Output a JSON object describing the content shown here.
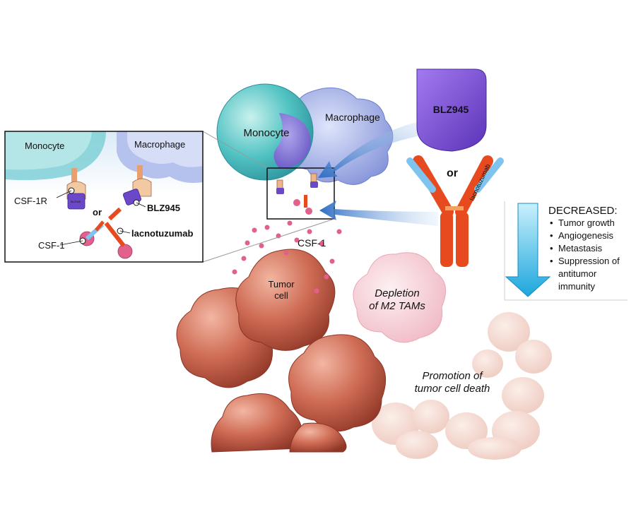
{
  "labels": {
    "monocyte": "Monocyte",
    "macrophage": "Macrophage",
    "csf1": "CSF-1",
    "tumor_cell_line1": "Tumor",
    "tumor_cell_line2": "cell",
    "depletion_line1": "Depletion",
    "depletion_line2": "of M2 TAMs",
    "promotion_line1": "Promotion of",
    "promotion_line2": "tumor cell death"
  },
  "inset": {
    "monocyte": "Monocyte",
    "macrophage": "Macrophage",
    "receptor": "CSF-1R",
    "drug_small": "BLZ945",
    "or": "or",
    "ligand": "CSF-1",
    "drug_antibody": "lacnotuzumab",
    "drug_tag": "BLZ945"
  },
  "drugs": {
    "small_molecule": "BLZ945",
    "or": "or",
    "antibody": "lacnotuzumab"
  },
  "effects": {
    "heading": "DECREASED:",
    "items": [
      "Tumor growth",
      "Angiogenesis",
      "Metastasis",
      "Suppression of",
      "antitumor",
      "immunity"
    ],
    "bullets": [
      true,
      true,
      true,
      true,
      false,
      false
    ]
  },
  "colors": {
    "monocyte": "#3fb6b8",
    "macrophage": "#8f9fe0",
    "blz945": "#7b4fd6",
    "antibody_red": "#e64a1e",
    "antibody_blue": "#7ec4ee",
    "tumor": "#c8614d",
    "arrow_blue": "#2f6fc4",
    "decreased_arrow": "#4cc0ec",
    "csf1_dot": "#e2608c"
  }
}
